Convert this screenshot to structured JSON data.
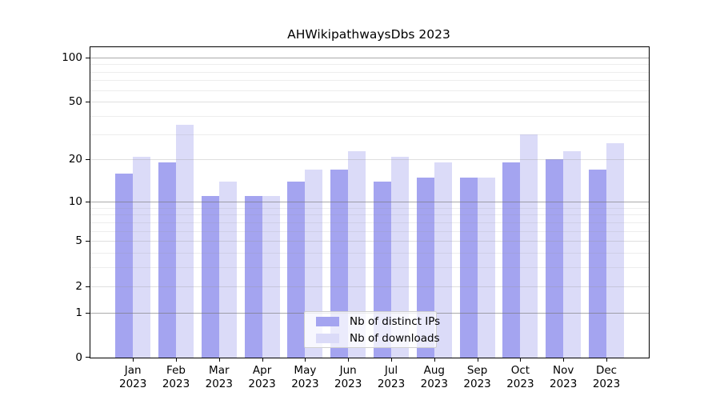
{
  "title": "AHWikipathwaysDbs 2023",
  "chart_data": {
    "type": "bar",
    "title": "AHWikipathwaysDbs 2023",
    "categories": [
      {
        "month": "Jan",
        "year": "2023"
      },
      {
        "month": "Feb",
        "year": "2023"
      },
      {
        "month": "Mar",
        "year": "2023"
      },
      {
        "month": "Apr",
        "year": "2023"
      },
      {
        "month": "May",
        "year": "2023"
      },
      {
        "month": "Jun",
        "year": "2023"
      },
      {
        "month": "Jul",
        "year": "2023"
      },
      {
        "month": "Aug",
        "year": "2023"
      },
      {
        "month": "Sep",
        "year": "2023"
      },
      {
        "month": "Oct",
        "year": "2023"
      },
      {
        "month": "Nov",
        "year": "2023"
      },
      {
        "month": "Dec",
        "year": "2023"
      }
    ],
    "series": [
      {
        "name": "Nb of distinct IPs",
        "color": "#a4a4f0",
        "values": [
          16,
          19,
          11,
          11,
          14,
          17,
          14,
          15,
          15,
          19,
          20,
          17
        ]
      },
      {
        "name": "Nb of downloads",
        "color": "#dbdbf8",
        "values": [
          21,
          35,
          14,
          11,
          17,
          23,
          21,
          19,
          15,
          30,
          23,
          26
        ]
      }
    ],
    "y_axis": {
      "scale": "log1p",
      "range": [
        0,
        100
      ],
      "ticks": [
        0,
        1,
        2,
        5,
        10,
        20,
        50,
        100
      ],
      "minor_gridlines": [
        3,
        4,
        6,
        7,
        8,
        9,
        30,
        40,
        60,
        70,
        80,
        90
      ],
      "decade_gridlines": [
        1,
        10,
        100
      ]
    },
    "grid": true,
    "legend_position": "bottom-center-inside",
    "colors": {
      "axis": "#000000",
      "decade_grid": "rgba(120,120,120,0.62)",
      "major_grid": "rgba(150,150,150,0.30)",
      "minor_grid": "rgba(150,150,150,0.17)"
    }
  }
}
